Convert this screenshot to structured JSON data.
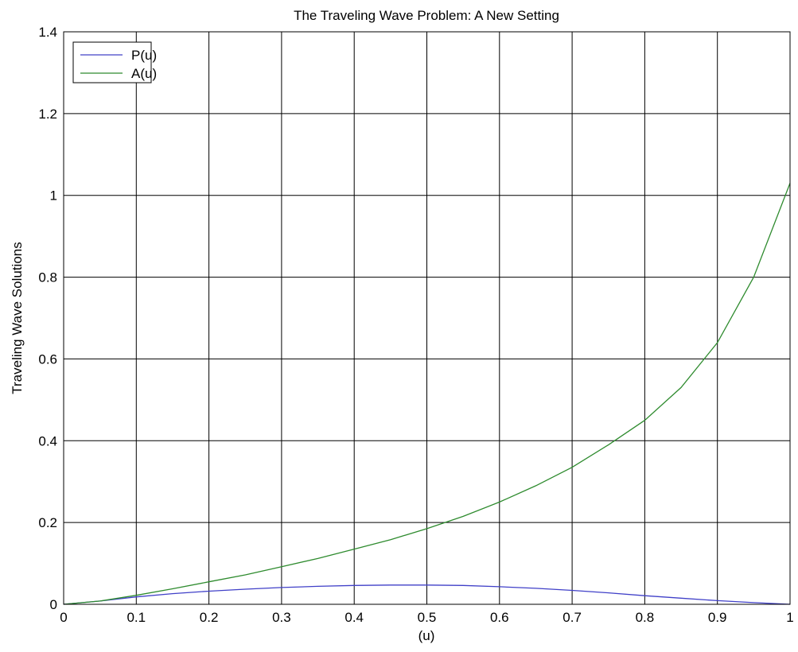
{
  "chart_data": {
    "type": "line",
    "title": "The Traveling Wave Problem: A New Setting",
    "xlabel": "(u)",
    "ylabel": "Traveling Wave Solutions",
    "xlim": [
      0,
      1
    ],
    "ylim": [
      0,
      1.4
    ],
    "grid": true,
    "legend_position": "top-left",
    "x_ticks": [
      "0",
      "0.1",
      "0.2",
      "0.3",
      "0.4",
      "0.5",
      "0.6",
      "0.7",
      "0.8",
      "0.9",
      "1"
    ],
    "y_ticks": [
      "0",
      "0.2",
      "0.4",
      "0.6",
      "0.8",
      "1",
      "1.2",
      "1.4"
    ],
    "x": [
      0,
      0.05,
      0.1,
      0.15,
      0.2,
      0.25,
      0.3,
      0.35,
      0.4,
      0.45,
      0.5,
      0.55,
      0.6,
      0.65,
      0.7,
      0.75,
      0.8,
      0.85,
      0.9,
      0.95,
      1.0
    ],
    "series": [
      {
        "name": "P(u)",
        "color": "#4040c8",
        "values": [
          0,
          0.008,
          0.018,
          0.026,
          0.032,
          0.037,
          0.041,
          0.044,
          0.046,
          0.047,
          0.047,
          0.046,
          0.043,
          0.039,
          0.034,
          0.028,
          0.021,
          0.015,
          0.009,
          0.004,
          0
        ]
      },
      {
        "name": "A(u)",
        "color": "#2e8b2e",
        "values": [
          0,
          0.008,
          0.022,
          0.038,
          0.055,
          0.072,
          0.092,
          0.112,
          0.135,
          0.158,
          0.185,
          0.215,
          0.25,
          0.29,
          0.335,
          0.39,
          0.45,
          0.53,
          0.64,
          0.8,
          1.03
        ]
      }
    ]
  }
}
